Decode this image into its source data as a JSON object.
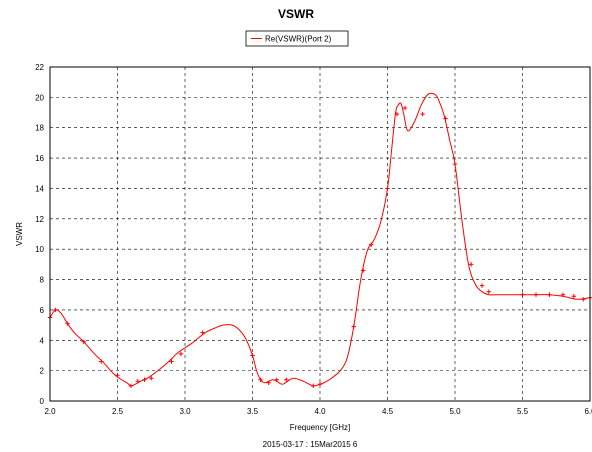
{
  "chart_data": {
    "type": "line",
    "title": "VSWR",
    "xlabel": "Frequency [GHz]",
    "ylabel": "VSWR",
    "footer": "2015-03-17 : 15Mar2015 6",
    "xlim": [
      2.0,
      6.0
    ],
    "ylim": [
      0,
      22
    ],
    "xticks": [
      "2.0",
      "2.5",
      "3.0",
      "3.5",
      "4.0",
      "4.5",
      "5.0",
      "5.5",
      "6.0"
    ],
    "yticks": [
      "0",
      "2",
      "4",
      "6",
      "8",
      "10",
      "12",
      "14",
      "16",
      "18",
      "20",
      "22"
    ],
    "grid": "dashed",
    "legend_position": "top-center",
    "series": [
      {
        "name": "Re(VSWR)(Port 2)",
        "color": "#ff0000",
        "marker": "plus",
        "x": [
          2.0,
          2.04,
          2.08,
          2.13,
          2.18,
          2.25,
          2.33,
          2.4,
          2.47,
          2.53,
          2.57,
          2.6,
          2.63,
          2.67,
          2.72,
          2.8,
          2.88,
          2.95,
          3.05,
          3.15,
          3.22,
          3.28,
          3.35,
          3.4,
          3.45,
          3.5,
          3.53,
          3.56,
          3.59,
          3.62,
          3.65,
          3.68,
          3.72,
          3.76,
          3.8,
          3.85,
          3.9,
          3.95,
          4.0,
          4.05,
          4.1,
          4.15,
          4.2,
          4.25,
          4.3,
          4.35,
          4.4,
          4.45,
          4.5,
          4.53,
          4.56,
          4.58,
          4.6,
          4.62,
          4.65,
          4.7,
          4.75,
          4.8,
          4.85,
          4.88,
          4.92,
          4.96,
          5.0,
          5.05,
          5.1,
          5.15,
          5.2,
          5.25,
          5.3,
          5.4,
          5.5,
          5.6,
          5.7,
          5.8,
          5.9,
          6.0
        ],
        "y": [
          5.5,
          6.0,
          5.8,
          5.1,
          4.5,
          3.9,
          3.1,
          2.5,
          1.8,
          1.4,
          1.2,
          1.0,
          1.1,
          1.3,
          1.5,
          2.0,
          2.6,
          3.2,
          3.8,
          4.5,
          4.8,
          5.0,
          5.0,
          4.7,
          4.1,
          3.0,
          2.0,
          1.4,
          1.2,
          1.3,
          1.4,
          1.3,
          1.1,
          1.3,
          1.5,
          1.4,
          1.2,
          1.0,
          1.1,
          1.3,
          1.6,
          2.0,
          2.8,
          4.9,
          7.9,
          9.9,
          10.6,
          11.8,
          14.0,
          16.5,
          19.0,
          19.5,
          19.6,
          18.9,
          17.8,
          18.4,
          19.5,
          20.2,
          20.2,
          19.8,
          18.8,
          17.2,
          15.6,
          12.0,
          9.0,
          7.7,
          7.2,
          7.0,
          7.0,
          7.0,
          7.0,
          7.0,
          7.0,
          6.9,
          6.7,
          6.8
        ],
        "marked_x": [
          2.0,
          2.04,
          2.13,
          2.25,
          2.38,
          2.5,
          2.6,
          2.65,
          2.7,
          2.75,
          2.9,
          2.97,
          3.13,
          3.5,
          3.56,
          3.62,
          3.68,
          3.75,
          3.95,
          4.0,
          4.25,
          4.32,
          4.38,
          4.5,
          4.57,
          4.63,
          4.76,
          4.93,
          5.0,
          5.12,
          5.2,
          5.25,
          5.5,
          5.6,
          5.7,
          5.8,
          5.88,
          5.95,
          6.0
        ],
        "marked_y": [
          5.5,
          6.0,
          5.1,
          3.9,
          2.6,
          1.7,
          1.0,
          1.3,
          1.4,
          1.5,
          2.6,
          3.1,
          4.5,
          3.0,
          1.4,
          1.2,
          1.4,
          1.4,
          1.0,
          1.1,
          4.9,
          8.6,
          10.3,
          14.0,
          18.9,
          19.3,
          18.9,
          18.6,
          15.6,
          9.0,
          7.6,
          7.2,
          7.0,
          7.0,
          7.0,
          7.0,
          6.9,
          6.7,
          6.8
        ]
      }
    ]
  }
}
